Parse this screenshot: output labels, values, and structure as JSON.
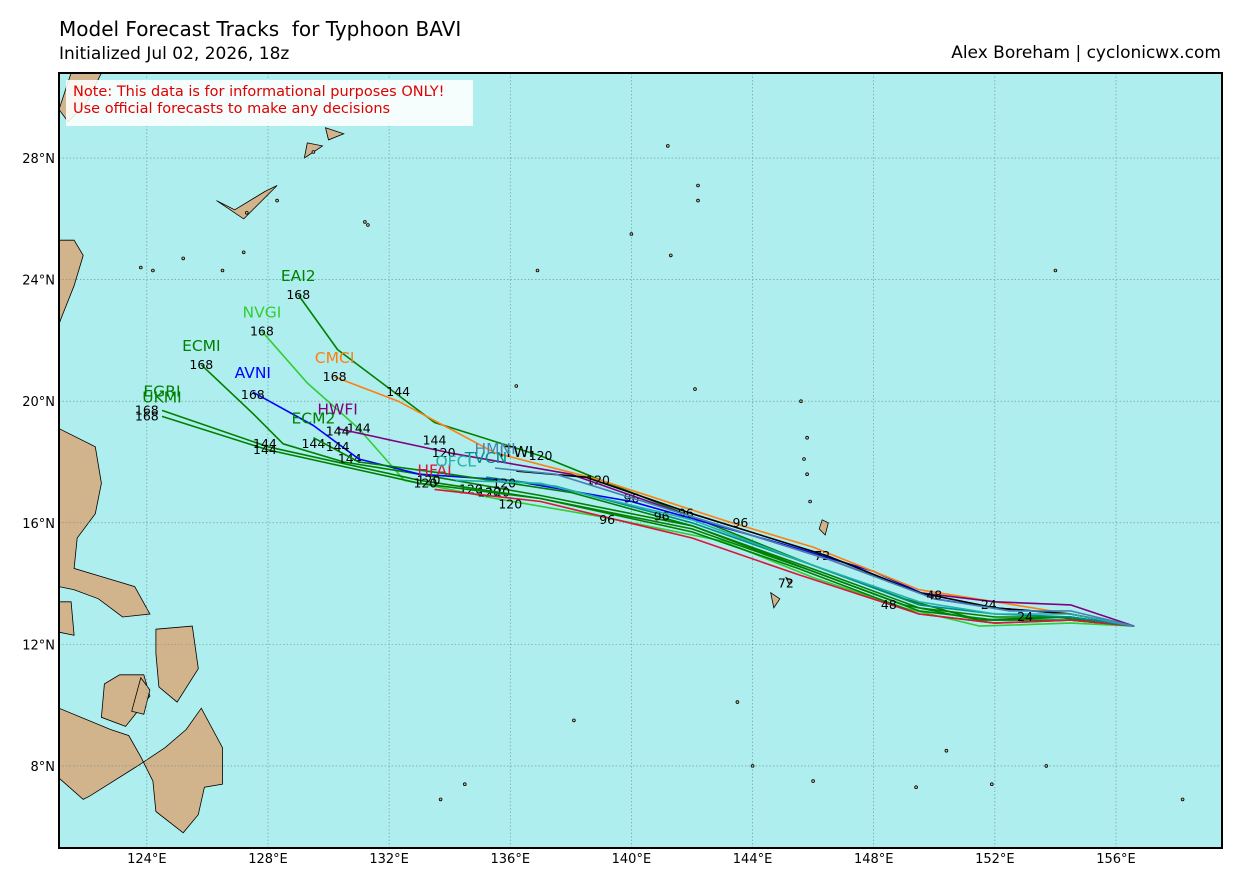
{
  "header": {
    "title": "Model Forecast Tracks  for Typhoon BAVI",
    "subtitle": "Initialized Jul 02, 2026, 18z",
    "credit": "Alex Boreham | cyclonicwx.com"
  },
  "note": {
    "line1": "Note: This data is for informational purposes ONLY!",
    "line2": "Use official forecasts to make any decisions"
  },
  "map": {
    "ocean_color": "#afeeee",
    "land_color": "#d2b48c",
    "lon_range": [
      121.1,
      159.5
    ],
    "lat_range": [
      5.3,
      30.8
    ],
    "lon_ticks": [
      124,
      128,
      132,
      136,
      140,
      144,
      148,
      152,
      156
    ],
    "lat_ticks": [
      8,
      12,
      16,
      20,
      24,
      28
    ],
    "lon_tick_labels": [
      "124°E",
      "128°E",
      "132°E",
      "136°E",
      "140°E",
      "144°E",
      "148°E",
      "152°E",
      "156°E"
    ],
    "lat_tick_labels": [
      "8°N",
      "12°N",
      "16°N",
      "20°N",
      "24°N",
      "28°N"
    ],
    "grid": true
  },
  "tracks": [
    {
      "name": "EAI2",
      "color": "#008000",
      "points": [
        [
          156.6,
          12.6
        ],
        [
          154.5,
          12.8
        ],
        [
          151.5,
          12.8
        ],
        [
          149,
          13.5
        ],
        [
          146,
          14.6
        ],
        [
          142,
          16.2
        ],
        [
          137,
          18.2
        ],
        [
          133.5,
          19.3
        ],
        [
          130.3,
          21.7
        ],
        [
          129.0,
          23.5
        ]
      ],
      "labels": [
        {
          "h": "168",
          "lon": 129.0,
          "lat": 23.5
        },
        {
          "h": "144",
          "lon": 133.5,
          "lat": 18.7
        },
        {
          "h": "120",
          "lon": 137.0,
          "lat": 18.2
        }
      ]
    },
    {
      "name": "NVGI",
      "color": "#32cd32",
      "points": [
        [
          156.6,
          12.6
        ],
        [
          154.5,
          12.7
        ],
        [
          151.5,
          12.6
        ],
        [
          149,
          13.2
        ],
        [
          146,
          14.2
        ],
        [
          143,
          15.4
        ],
        [
          139,
          16.2
        ],
        [
          135.5,
          16.8
        ],
        [
          132.5,
          17.4
        ],
        [
          131,
          19.1
        ],
        [
          129.3,
          20.6
        ],
        [
          127.8,
          22.3
        ]
      ],
      "labels": [
        {
          "h": "168",
          "lon": 127.8,
          "lat": 22.3
        },
        {
          "h": "144",
          "lon": 131.0,
          "lat": 19.1
        },
        {
          "h": "120",
          "lon": 135.3,
          "lat": 17.0
        }
      ]
    },
    {
      "name": "ECMI",
      "color": "#008000",
      "points": [
        [
          156.6,
          12.6
        ],
        [
          154.5,
          12.9
        ],
        [
          152,
          12.9
        ],
        [
          149.5,
          13.2
        ],
        [
          146.5,
          14.3
        ],
        [
          142,
          15.9
        ],
        [
          137,
          16.9
        ],
        [
          133,
          17.6
        ],
        [
          130.5,
          18.0
        ],
        [
          128.5,
          18.6
        ],
        [
          127.5,
          19.6
        ],
        [
          125.8,
          21.2
        ]
      ],
      "labels": [
        {
          "h": "168",
          "lon": 125.8,
          "lat": 21.2
        },
        {
          "h": "144",
          "lon": 130.7,
          "lat": 18.1
        },
        {
          "h": "120",
          "lon": 135.6,
          "lat": 17.0
        }
      ]
    },
    {
      "name": "AVNI",
      "color": "#0000ff",
      "points": [
        [
          156.6,
          12.6
        ],
        [
          154.5,
          13.0
        ],
        [
          152,
          13.2
        ],
        [
          150,
          13.5
        ],
        [
          148,
          14.4
        ],
        [
          145,
          15.3
        ],
        [
          140,
          16.7
        ],
        [
          136,
          17.4
        ],
        [
          133,
          17.6
        ],
        [
          131,
          18.1
        ],
        [
          129.5,
          19.2
        ],
        [
          127.5,
          20.3
        ]
      ],
      "labels": [
        {
          "h": "168",
          "lon": 127.5,
          "lat": 20.2
        },
        {
          "h": "144",
          "lon": 129.5,
          "lat": 18.6
        },
        {
          "h": "120",
          "lon": 134.7,
          "lat": 17.1
        },
        {
          "h": "96",
          "lon": 140.0,
          "lat": 16.8
        }
      ]
    },
    {
      "name": "CMCI",
      "color": "#ff7f0e",
      "points": [
        [
          156.6,
          12.6
        ],
        [
          154.5,
          13.0
        ],
        [
          152,
          13.4
        ],
        [
          149.5,
          13.8
        ],
        [
          146,
          15.2
        ],
        [
          143,
          16.1
        ],
        [
          139,
          17.4
        ],
        [
          135.5,
          18.3
        ],
        [
          132.3,
          20.0
        ],
        [
          130.2,
          20.8
        ]
      ],
      "labels": [
        {
          "h": "168",
          "lon": 130.2,
          "lat": 20.8
        },
        {
          "h": "144",
          "lon": 132.3,
          "lat": 20.3
        },
        {
          "h": "120",
          "lon": 138.9,
          "lat": 17.4
        },
        {
          "h": "96",
          "lon": 143.6,
          "lat": 16.0
        }
      ]
    },
    {
      "name": "EGRI",
      "color": "#008000",
      "points": [
        [
          156.6,
          12.6
        ],
        [
          154.5,
          12.9
        ],
        [
          152,
          12.8
        ],
        [
          149.5,
          13.1
        ],
        [
          146,
          14.4
        ],
        [
          142,
          15.8
        ],
        [
          137,
          16.8
        ],
        [
          133,
          17.4
        ],
        [
          128,
          18.5
        ],
        [
          124.5,
          19.7
        ]
      ],
      "labels": [
        {
          "h": "168",
          "lon": 124.0,
          "lat": 19.7
        },
        {
          "h": "144",
          "lon": 127.9,
          "lat": 18.6
        },
        {
          "h": "120",
          "lon": 133.3,
          "lat": 17.4
        }
      ]
    },
    {
      "name": "UKMI",
      "color": "#008000",
      "points": [
        [
          156.6,
          12.6
        ],
        [
          154.5,
          12.8
        ],
        [
          152,
          12.7
        ],
        [
          149.5,
          13.0
        ],
        [
          145.5,
          14.5
        ],
        [
          142,
          15.7
        ],
        [
          137,
          16.8
        ],
        [
          133,
          17.3
        ],
        [
          128,
          18.4
        ],
        [
          124.5,
          19.5
        ]
      ],
      "labels": [
        {
          "h": "168",
          "lon": 124.0,
          "lat": 19.5
        },
        {
          "h": "144",
          "lon": 127.9,
          "lat": 18.4
        }
      ]
    },
    {
      "name": "HWFI",
      "color": "#800080",
      "points": [
        [
          156.6,
          12.6
        ],
        [
          154.5,
          13.3
        ],
        [
          152,
          13.4
        ],
        [
          149.5,
          13.7
        ],
        [
          146.5,
          14.8
        ],
        [
          142,
          16.2
        ],
        [
          138,
          17.6
        ],
        [
          134,
          18.3
        ],
        [
          130.3,
          19.1
        ]
      ],
      "labels": [
        {
          "h": "144",
          "lon": 130.3,
          "lat": 19.0
        },
        {
          "h": "120",
          "lon": 133.8,
          "lat": 18.3
        }
      ]
    },
    {
      "name": "ECM2",
      "color": "#008000",
      "points": [
        [
          156.6,
          12.6
        ],
        [
          154,
          12.9
        ],
        [
          151.5,
          12.8
        ],
        [
          149,
          13.3
        ],
        [
          146,
          14.4
        ],
        [
          142,
          15.9
        ],
        [
          138,
          17.0
        ],
        [
          134,
          17.6
        ],
        [
          131,
          18.0
        ],
        [
          129.5,
          18.8
        ]
      ],
      "labels": [
        {
          "h": "144",
          "lon": 130.3,
          "lat": 18.5
        }
      ]
    },
    {
      "name": "ITWI",
      "color": "#000000",
      "points": [
        [
          156.6,
          12.6
        ],
        [
          154.5,
          13.0
        ],
        [
          152,
          13.2
        ],
        [
          149.5,
          13.7
        ],
        [
          146.5,
          14.9
        ],
        [
          142,
          16.3
        ],
        [
          138.5,
          17.5
        ],
        [
          136.2,
          17.7
        ]
      ],
      "labels": [
        {
          "h": "96",
          "lon": 141.8,
          "lat": 16.3
        },
        {
          "h": "72",
          "lon": 146.3,
          "lat": 14.9
        }
      ]
    },
    {
      "name": "HFAI",
      "color": "#dc143c",
      "points": [
        [
          156.6,
          12.6
        ],
        [
          154.5,
          12.8
        ],
        [
          152,
          12.7
        ],
        [
          149.5,
          13.0
        ],
        [
          145.5,
          14.3
        ],
        [
          142,
          15.5
        ],
        [
          137,
          16.7
        ],
        [
          133.5,
          17.1
        ]
      ],
      "labels": [
        {
          "h": "120",
          "lon": 133.2,
          "lat": 17.3
        },
        {
          "h": "120",
          "lon": 136.0,
          "lat": 16.6
        },
        {
          "h": "96",
          "lon": 139.2,
          "lat": 16.1
        },
        {
          "h": "72",
          "lon": 145.1,
          "lat": 14.0
        }
      ]
    },
    {
      "name": "TVCN",
      "color": "#008b8b",
      "points": [
        [
          156.6,
          12.6
        ],
        [
          154.5,
          12.9
        ],
        [
          152,
          13.0
        ],
        [
          149.5,
          13.3
        ],
        [
          146,
          14.6
        ],
        [
          142,
          16.0
        ],
        [
          137.5,
          17.2
        ],
        [
          135.2,
          17.5
        ]
      ],
      "labels": [
        {
          "h": "120",
          "lon": 135.8,
          "lat": 17.3
        },
        {
          "h": "96",
          "lon": 141.0,
          "lat": 16.2
        },
        {
          "h": "48",
          "lon": 148.5,
          "lat": 13.3
        },
        {
          "h": "24",
          "lon": 151.8,
          "lat": 13.3
        }
      ]
    },
    {
      "name": "OFCL",
      "color": "#20b2aa",
      "points": [
        [
          156.6,
          12.6
        ],
        [
          154.5,
          13.0
        ],
        [
          152,
          13.0
        ],
        [
          149.5,
          13.4
        ],
        [
          146,
          14.6
        ],
        [
          142,
          16.1
        ],
        [
          137,
          17.3
        ],
        [
          134.2,
          17.4
        ]
      ],
      "labels": []
    },
    {
      "name": "HMNI",
      "color": "#4682b4",
      "points": [
        [
          156.6,
          12.6
        ],
        [
          154.5,
          13.1
        ],
        [
          152.5,
          13.1
        ],
        [
          150,
          13.5
        ],
        [
          146.5,
          14.8
        ],
        [
          142,
          16.2
        ],
        [
          137.5,
          17.6
        ],
        [
          135.5,
          17.8
        ]
      ],
      "labels": [
        {
          "h": "48",
          "lon": 150.0,
          "lat": 13.6
        },
        {
          "h": "24",
          "lon": 153.0,
          "lat": 12.9
        }
      ]
    }
  ]
}
